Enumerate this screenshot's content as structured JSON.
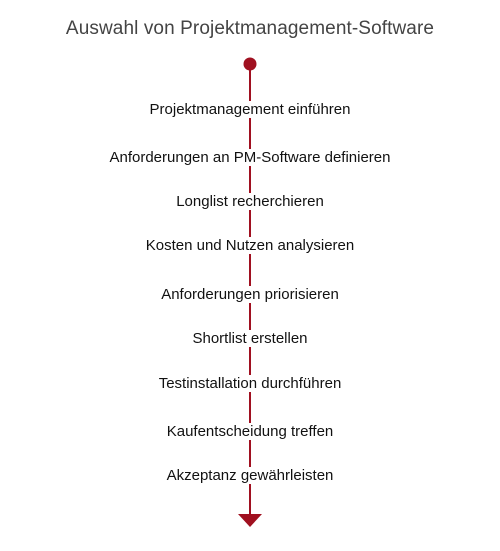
{
  "title": "Auswahl von Projektmanagement-Software",
  "steps": [
    "Projektmanagement einführen",
    "Anforderungen an PM-Software definieren",
    "Longlist recherchieren",
    "Kosten und Nutzen analysieren",
    "Anforderungen priorisieren",
    "Shortlist erstellen",
    "Testinstallation durchführen",
    "Kaufentscheidung treffen",
    "Akzeptanz gewährleisten"
  ],
  "colors": {
    "accent": "#a01020",
    "text": "#111111",
    "title": "#444444"
  },
  "icons": {
    "start": "start-dot-icon",
    "end": "arrow-down-icon"
  }
}
